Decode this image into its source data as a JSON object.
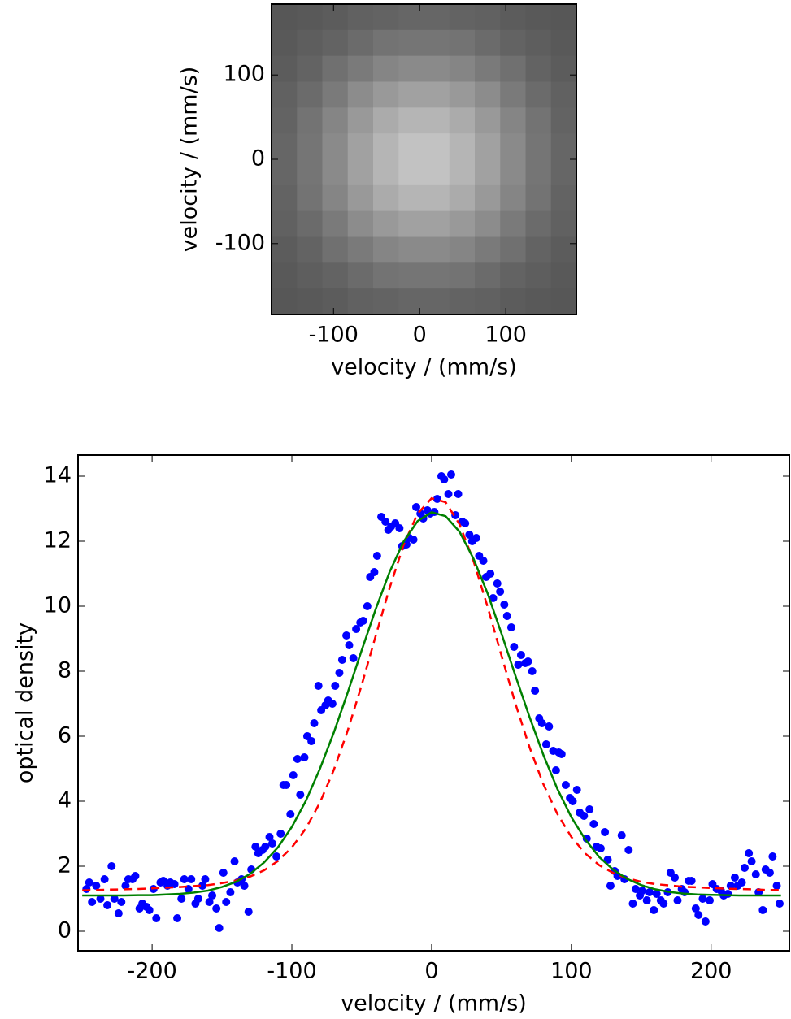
{
  "chart_data": [
    {
      "type": "image",
      "colormap": "gray",
      "xlabel": "velocity / (mm/s)",
      "ylabel": "velocity / (mm/s)",
      "xlim": [
        -172,
        182
      ],
      "ylim": [
        -184,
        184
      ],
      "xticks": [
        -100,
        0,
        100
      ],
      "yticks": [
        -100,
        0,
        100
      ],
      "z": [
        [
          0.34,
          0.35,
          0.36,
          0.38,
          0.39,
          0.4,
          0.4,
          0.39,
          0.38,
          0.36,
          0.35,
          0.34
        ],
        [
          0.35,
          0.37,
          0.39,
          0.42,
          0.45,
          0.46,
          0.46,
          0.45,
          0.42,
          0.39,
          0.37,
          0.35
        ],
        [
          0.36,
          0.39,
          0.44,
          0.48,
          0.52,
          0.54,
          0.54,
          0.52,
          0.48,
          0.44,
          0.39,
          0.36
        ],
        [
          0.38,
          0.42,
          0.48,
          0.55,
          0.6,
          0.63,
          0.63,
          0.6,
          0.55,
          0.48,
          0.42,
          0.38
        ],
        [
          0.39,
          0.45,
          0.52,
          0.6,
          0.67,
          0.71,
          0.71,
          0.67,
          0.6,
          0.52,
          0.45,
          0.39
        ],
        [
          0.4,
          0.46,
          0.54,
          0.63,
          0.71,
          0.76,
          0.76,
          0.71,
          0.63,
          0.54,
          0.46,
          0.4
        ],
        [
          0.4,
          0.46,
          0.54,
          0.63,
          0.71,
          0.76,
          0.76,
          0.71,
          0.63,
          0.54,
          0.46,
          0.4
        ],
        [
          0.39,
          0.45,
          0.52,
          0.6,
          0.67,
          0.71,
          0.71,
          0.67,
          0.6,
          0.52,
          0.45,
          0.39
        ],
        [
          0.38,
          0.42,
          0.48,
          0.55,
          0.6,
          0.63,
          0.63,
          0.6,
          0.55,
          0.48,
          0.42,
          0.38
        ],
        [
          0.36,
          0.39,
          0.44,
          0.48,
          0.52,
          0.54,
          0.54,
          0.52,
          0.48,
          0.44,
          0.39,
          0.36
        ],
        [
          0.35,
          0.37,
          0.39,
          0.42,
          0.45,
          0.46,
          0.46,
          0.45,
          0.42,
          0.39,
          0.37,
          0.35
        ],
        [
          0.34,
          0.35,
          0.36,
          0.38,
          0.39,
          0.4,
          0.4,
          0.39,
          0.38,
          0.36,
          0.35,
          0.34
        ]
      ]
    },
    {
      "type": "scatter",
      "xlabel": "velocity / (mm/s)",
      "ylabel": "optical density",
      "xlim": [
        -253,
        256
      ],
      "ylim": [
        -0.6,
        14.65
      ],
      "xticks": [
        -200,
        -100,
        0,
        100,
        200
      ],
      "yticks": [
        0,
        2,
        4,
        6,
        8,
        10,
        12,
        14
      ],
      "series": [
        {
          "style": "markers",
          "color": "#0000ff",
          "x": [
            -247,
            -245,
            -243,
            -240,
            -237,
            -234,
            -232,
            -229,
            -227,
            -224,
            -222,
            -219,
            -217,
            -214,
            -212,
            -209,
            -207,
            -204,
            -202,
            -199,
            -197,
            -194,
            -192,
            -189,
            -187,
            -184,
            -182,
            -179,
            -177,
            -174,
            -172,
            -169,
            -167,
            -164,
            -162,
            -159,
            -157,
            -154,
            -152,
            -149,
            -147,
            -144,
            -141,
            -139,
            -136,
            -134,
            -131,
            -129,
            -126,
            -124,
            -121,
            -119,
            -116,
            -114,
            -111,
            -108,
            -106,
            -104,
            -101,
            -99,
            -96,
            -94,
            -91,
            -89,
            -86,
            -84,
            -81,
            -79,
            -76,
            -74,
            -71,
            -69,
            -66,
            -64,
            -61,
            -59,
            -56,
            -54,
            -51,
            -49,
            -46,
            -44,
            -41,
            -39,
            -36,
            -33,
            -31,
            -29,
            -26,
            -23,
            -21,
            -18,
            -16,
            -13,
            -11,
            -8,
            -6,
            -3,
            -1,
            2,
            4,
            7,
            9,
            12,
            14,
            17,
            19,
            22,
            24,
            27,
            29,
            32,
            34,
            37,
            39,
            42,
            44,
            47,
            49,
            52,
            54,
            57,
            59,
            62,
            64,
            67,
            69,
            72,
            74,
            77,
            79,
            82,
            84,
            87,
            89,
            91,
            93,
            96,
            99,
            101,
            104,
            106,
            109,
            111,
            113,
            116,
            118,
            121,
            124,
            126,
            128,
            131,
            133,
            136,
            138,
            141,
            144,
            146,
            149,
            151,
            154,
            156,
            159,
            161,
            164,
            166,
            169,
            171,
            174,
            176,
            179,
            181,
            184,
            186,
            189,
            191,
            194,
            196,
            199,
            201,
            204,
            207,
            209,
            212,
            214,
            217,
            219,
            222,
            224,
            227,
            229,
            232,
            234,
            237,
            239,
            242,
            244,
            247,
            249
          ],
          "values": [
            1.3,
            1.5,
            0.9,
            1.4,
            1.0,
            1.6,
            0.8,
            2.0,
            1.0,
            0.55,
            0.9,
            1.4,
            1.6,
            1.6,
            1.7,
            0.7,
            0.85,
            0.75,
            0.65,
            1.3,
            0.4,
            1.5,
            1.55,
            1.4,
            1.5,
            1.45,
            0.4,
            1.0,
            1.6,
            1.3,
            1.6,
            0.85,
            1.0,
            1.4,
            1.6,
            0.9,
            1.1,
            0.7,
            0.1,
            1.8,
            0.9,
            1.2,
            2.15,
            1.5,
            1.6,
            1.4,
            0.6,
            1.9,
            2.6,
            2.4,
            2.5,
            2.6,
            2.9,
            2.7,
            2.3,
            3.0,
            4.5,
            4.5,
            3.6,
            4.8,
            5.3,
            4.2,
            5.35,
            6.0,
            5.85,
            6.4,
            7.55,
            6.8,
            6.95,
            7.1,
            7.0,
            7.55,
            7.95,
            8.35,
            9.1,
            8.8,
            8.4,
            9.3,
            9.5,
            9.55,
            10.0,
            10.9,
            11.05,
            11.55,
            12.75,
            12.6,
            12.35,
            12.45,
            12.55,
            12.4,
            11.85,
            11.9,
            12.1,
            12.05,
            13.05,
            12.85,
            12.7,
            12.95,
            12.85,
            12.9,
            13.3,
            14.0,
            13.9,
            13.45,
            14.05,
            12.8,
            13.45,
            12.6,
            12.55,
            12.2,
            12.0,
            12.1,
            11.55,
            11.4,
            10.9,
            11.0,
            10.25,
            10.7,
            10.45,
            10.05,
            9.7,
            9.35,
            8.75,
            8.2,
            8.5,
            8.25,
            8.3,
            8.0,
            7.4,
            6.55,
            6.4,
            5.75,
            6.3,
            5.55,
            4.95,
            5.5,
            5.45,
            4.5,
            4.1,
            4.0,
            4.35,
            3.65,
            3.55,
            2.85,
            3.75,
            3.3,
            2.6,
            2.55,
            3.05,
            2.2,
            1.4,
            1.85,
            1.7,
            2.95,
            1.6,
            2.5,
            0.85,
            1.3,
            1.1,
            1.25,
            0.95,
            1.2,
            0.65,
            1.15,
            0.95,
            0.85,
            1.2,
            1.8,
            1.65,
            0.95,
            1.3,
            1.2,
            1.55,
            1.55,
            0.7,
            0.5,
            1.0,
            0.3,
            0.95,
            1.45,
            1.3,
            1.25,
            1.1,
            1.15,
            1.4,
            1.65,
            1.4,
            1.5,
            1.95,
            2.4,
            2.15,
            1.75,
            1.2,
            0.65,
            1.9,
            1.8,
            2.3,
            1.4,
            0.85
          ]
        },
        {
          "style": "dashed",
          "color": "#ff0000",
          "x": [
            -250,
            -240,
            -230,
            -220,
            -210,
            -200,
            -190,
            -180,
            -170,
            -160,
            -150,
            -140,
            -130,
            -120,
            -110,
            -100,
            -90,
            -80,
            -70,
            -60,
            -50,
            -40,
            -30,
            -20,
            -10,
            0,
            10,
            20,
            30,
            40,
            50,
            60,
            70,
            80,
            90,
            100,
            110,
            120,
            130,
            140,
            150,
            160,
            170,
            180,
            190,
            200,
            210,
            220,
            230,
            240,
            250
          ],
          "values": [
            1.26,
            1.27,
            1.28,
            1.29,
            1.3,
            1.32,
            1.34,
            1.36,
            1.39,
            1.42,
            1.48,
            1.56,
            1.68,
            1.87,
            2.16,
            2.58,
            3.16,
            3.95,
            4.96,
            6.18,
            7.58,
            9.09,
            10.57,
            11.89,
            12.85,
            13.32,
            13.2,
            12.52,
            11.39,
            9.99,
            8.48,
            7.0,
            5.67,
            4.52,
            3.61,
            2.9,
            2.39,
            2.03,
            1.79,
            1.63,
            1.52,
            1.45,
            1.41,
            1.37,
            1.35,
            1.33,
            1.31,
            1.3,
            1.29,
            1.27,
            1.27
          ]
        },
        {
          "style": "solid",
          "color": "#008000",
          "x": [
            -250,
            -240,
            -230,
            -220,
            -210,
            -200,
            -190,
            -180,
            -170,
            -160,
            -150,
            -140,
            -130,
            -120,
            -110,
            -100,
            -90,
            -80,
            -70,
            -60,
            -50,
            -40,
            -30,
            -20,
            -10,
            0,
            10,
            20,
            30,
            40,
            50,
            60,
            70,
            80,
            90,
            100,
            110,
            120,
            130,
            140,
            150,
            160,
            170,
            180,
            190,
            200,
            210,
            220,
            230,
            240,
            250
          ],
          "values": [
            1.1,
            1.1,
            1.1,
            1.1,
            1.11,
            1.11,
            1.13,
            1.15,
            1.19,
            1.25,
            1.36,
            1.52,
            1.76,
            2.11,
            2.58,
            3.21,
            4.01,
            4.99,
            6.11,
            7.35,
            8.65,
            9.91,
            11.06,
            11.99,
            12.62,
            12.89,
            12.77,
            12.29,
            11.46,
            10.4,
            9.16,
            7.86,
            6.6,
            5.42,
            4.38,
            3.51,
            2.82,
            2.28,
            1.89,
            1.61,
            1.42,
            1.29,
            1.21,
            1.16,
            1.13,
            1.12,
            1.11,
            1.1,
            1.1,
            1.1,
            1.1
          ]
        }
      ]
    }
  ]
}
